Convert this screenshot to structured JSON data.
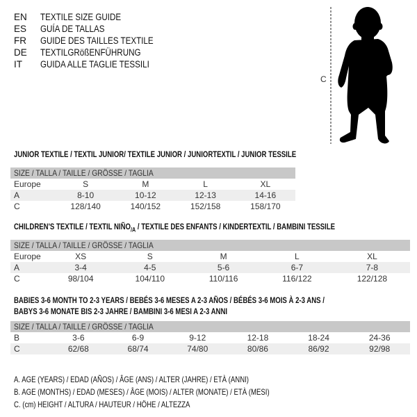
{
  "titles": [
    {
      "code": "EN",
      "text": "TEXTILE SIZE GUIDE"
    },
    {
      "code": "ES",
      "text": "GUÍA DE TALLAS"
    },
    {
      "code": "FR",
      "text": "GUIDE DES TAILLES TEXTILE"
    },
    {
      "code": "DE",
      "text": "TEXTILGRößENFÜHRUNG"
    },
    {
      "code": "IT",
      "text": "GUIDA ALLE TAGLIE TESSILI"
    }
  ],
  "figure": {
    "height_label": "C",
    "icon": "baby-silhouette-icon"
  },
  "junior": {
    "title": "JUNIOR TEXTILE / TEXTIL JUNIOR/ TEXTILE JUNIOR / JUNIORTEXTIL / JUNIOR TESSILE",
    "header": "SIZE / TALLA / TAILLE / GRÖSSE / TAGLIA",
    "rows": [
      {
        "label": "Europe",
        "values": [
          "S",
          "M",
          "L",
          "XL"
        ]
      },
      {
        "label": "A",
        "values": [
          "8-10",
          "10-12",
          "12-13",
          "14-16"
        ]
      },
      {
        "label": "C",
        "values": [
          "128/140",
          "140/152",
          "152/158",
          "158/170"
        ]
      }
    ]
  },
  "children": {
    "title_pre": "CHILDREN'S TEXTILE / TEXTIL NIÑO",
    "title_sub": "/A",
    "title_post": " / TEXTILE DES ENFANTS / KINDERTEXTIL / BAMBINI TESSILE",
    "header": "SIZE / TALLA / TAILLE / GRÖSSE / TAGLIA",
    "rows": [
      {
        "label": "Europe",
        "values": [
          "XS",
          "S",
          "M",
          "L",
          "XL"
        ]
      },
      {
        "label": "A",
        "values": [
          "3-4",
          "4-5",
          "5-6",
          "6-7",
          "7-8"
        ]
      },
      {
        "label": "C",
        "values": [
          "98/104",
          "104/110",
          "110/116",
          "116/122",
          "122/128"
        ]
      }
    ]
  },
  "babies": {
    "title_line1": "BABIES 3-6 MONTH TO 2-3 YEARS / BEBÉS 3-6 MESES A 2-3 AÑOS / BÉBÉS 3-6 MOIS À 2-3 ANS /",
    "title_line2": "BABYS 3-6 MONATE BIS 2-3 JAHRE / BAMBINI 3-6 MESI A 2-3 ANNI",
    "header": "SIZE / TALLA / TAILLE / GRÖSSE / TAGLIA",
    "rows": [
      {
        "label": "B",
        "values": [
          "3-6",
          "6-9",
          "9-12",
          "12-18",
          "18-24",
          "24-36"
        ]
      },
      {
        "label": "C",
        "values": [
          "62/68",
          "68/74",
          "74/80",
          "80/86",
          "86/92",
          "92/98"
        ]
      }
    ]
  },
  "legend": [
    "A. AGE (YEARS) / EDAD (AÑOS) / ÂGE (ANS) / ALTER (JAHRE) / ETÀ (ANNI)",
    "B. AGE (MONTHS) / EDAD (MESES) / ÂGE (MOIS) / ALTER (MONATE) / ETÀ (MESI)",
    "C. (cm) HEIGHT / ALTURA / HAUTEUR / HÖHE / ALTEZZA"
  ]
}
